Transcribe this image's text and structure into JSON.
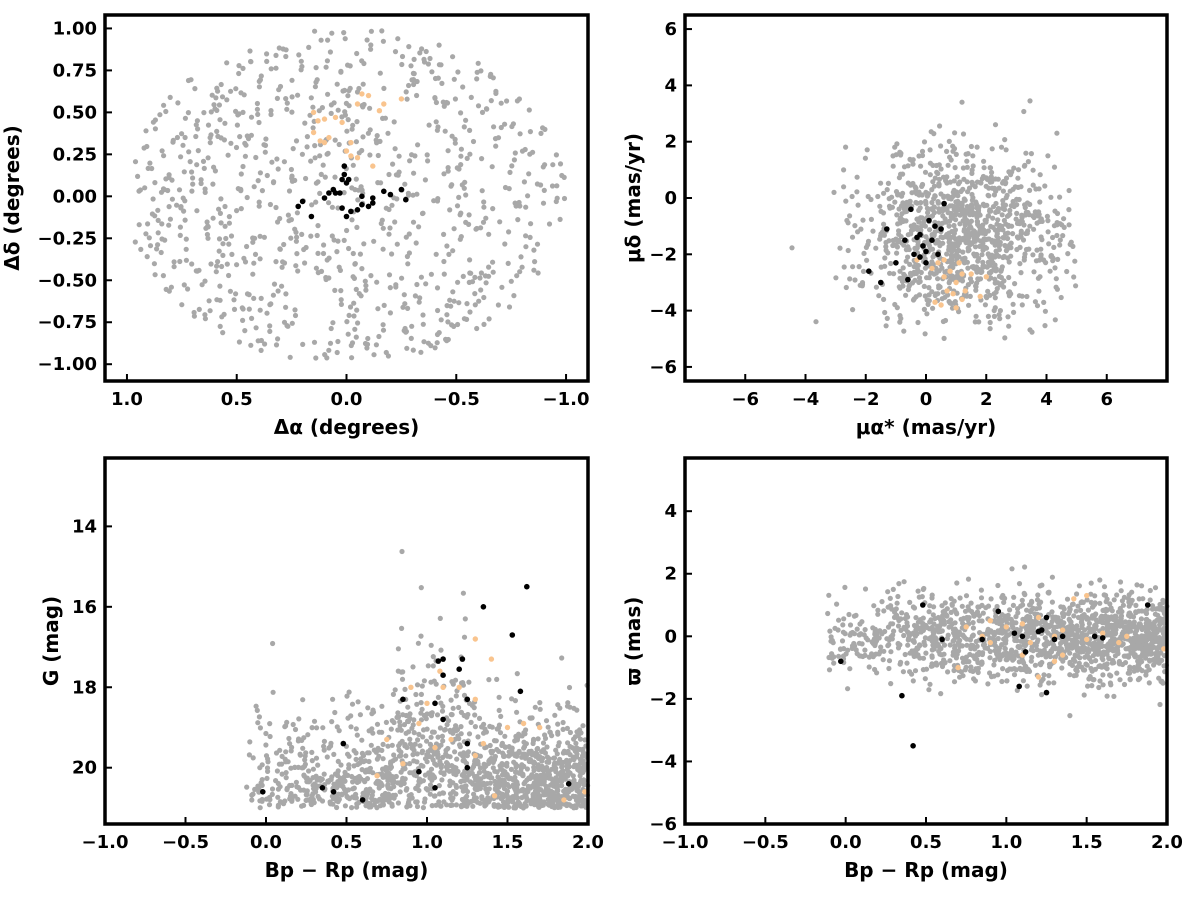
{
  "colors": {
    "field": "#a8a8a8",
    "orange": "#f9c48e",
    "black": "#000000",
    "frame": "#000000"
  },
  "chart_data": [
    {
      "type": "scatter",
      "id": "positions",
      "xlabel": "Δα (degrees)",
      "ylabel": "Δδ (degrees)",
      "xlim": [
        1.1,
        -1.1
      ],
      "ylim": [
        -1.1,
        1.08
      ],
      "xticks": [
        {
          "v": 1.0,
          "label": "1.0"
        },
        {
          "v": 0.5,
          "label": "0.5"
        },
        {
          "v": 0.0,
          "label": "0.0"
        },
        {
          "v": -0.5,
          "label": "−0.5"
        },
        {
          "v": -1.0,
          "label": "−1.0"
        }
      ],
      "yticks": [
        {
          "v": 1.0,
          "label": "1.00"
        },
        {
          "v": 0.75,
          "label": "0.75"
        },
        {
          "v": 0.5,
          "label": "0.50"
        },
        {
          "v": 0.25,
          "label": "0.25"
        },
        {
          "v": 0.0,
          "label": "0.00"
        },
        {
          "v": -0.25,
          "label": "−0.25"
        },
        {
          "v": -0.5,
          "label": "−0.50"
        },
        {
          "v": -0.75,
          "label": "−0.75"
        },
        {
          "v": -1.0,
          "label": "−1.00"
        }
      ],
      "grid": false,
      "field_sample": {
        "n": 900,
        "shape": "disk",
        "center": [
          0.0,
          0.0
        ],
        "radius": 1.0
      },
      "orange": [
        [
          0.15,
          0.5
        ],
        [
          0.13,
          0.45
        ],
        [
          0.1,
          0.46
        ],
        [
          0.15,
          0.38
        ],
        [
          0.12,
          0.33
        ],
        [
          0.08,
          0.35
        ],
        [
          0.05,
          0.47
        ],
        [
          0.02,
          0.44
        ],
        [
          0.0,
          0.27
        ],
        [
          -0.02,
          0.24
        ],
        [
          -0.05,
          0.23
        ],
        [
          -0.05,
          0.55
        ],
        [
          -0.07,
          0.61
        ],
        [
          -0.1,
          0.6
        ],
        [
          -0.15,
          0.51
        ],
        [
          -0.17,
          0.55
        ],
        [
          -0.25,
          0.58
        ],
        [
          -0.12,
          0.18
        ],
        [
          0.1,
          0.32
        ],
        [
          -0.02,
          0.32
        ]
      ],
      "black": [
        [
          0.22,
          -0.06
        ],
        [
          0.2,
          -0.03
        ],
        [
          0.16,
          -0.12
        ],
        [
          0.1,
          -0.01
        ],
        [
          0.08,
          0.02
        ],
        [
          0.06,
          0.04
        ],
        [
          0.05,
          0.02
        ],
        [
          0.03,
          0.02
        ],
        [
          0.02,
          0.1
        ],
        [
          0.01,
          0.13
        ],
        [
          0.01,
          0.18
        ],
        [
          0.0,
          0.08
        ],
        [
          -0.01,
          0.1
        ],
        [
          -0.02,
          -0.09
        ],
        [
          -0.05,
          -0.08
        ],
        [
          0.0,
          -0.12
        ],
        [
          -0.07,
          0.0
        ],
        [
          -0.07,
          -0.05
        ],
        [
          -0.1,
          -0.06
        ],
        [
          -0.12,
          -0.04
        ],
        [
          -0.12,
          -0.01
        ],
        [
          -0.17,
          0.03
        ],
        [
          -0.2,
          0.01
        ],
        [
          -0.25,
          0.04
        ],
        [
          -0.27,
          -0.02
        ],
        [
          0.02,
          -0.07
        ]
      ]
    },
    {
      "type": "scatter",
      "id": "proper-motion",
      "xlabel": "μα* (mas/yr)",
      "ylabel": "μδ (mas/yr)",
      "xlim": [
        -8.0,
        8.0
      ],
      "ylim": [
        -6.5,
        6.5
      ],
      "xticks": [
        {
          "v": -6,
          "label": "−6"
        },
        {
          "v": -4,
          "label": "−4"
        },
        {
          "v": -2,
          "label": "−2"
        },
        {
          "v": 0,
          "label": "0"
        },
        {
          "v": 2,
          "label": "2"
        },
        {
          "v": 4,
          "label": "4"
        },
        {
          "v": 6,
          "label": "6"
        }
      ],
      "yticks": [
        {
          "v": 6,
          "label": "6"
        },
        {
          "v": 4,
          "label": "4"
        },
        {
          "v": 2,
          "label": "2"
        },
        {
          "v": 0,
          "label": "0"
        },
        {
          "v": -2,
          "label": "−2"
        },
        {
          "v": -4,
          "label": "−4"
        },
        {
          "v": -6,
          "label": "−6"
        }
      ],
      "grid": false,
      "field_sample": {
        "n": 1100,
        "shape": "blob",
        "center": [
          1.2,
          -1.4
        ],
        "spread": [
          1.7,
          1.5
        ]
      },
      "orange": [
        [
          0.2,
          -2.5
        ],
        [
          0.4,
          -2.3
        ],
        [
          0.6,
          -2.8
        ],
        [
          0.8,
          -2.6
        ],
        [
          1.0,
          -3.0
        ],
        [
          1.2,
          -2.7
        ],
        [
          0.9,
          -3.4
        ],
        [
          1.3,
          -3.3
        ],
        [
          1.5,
          -2.7
        ],
        [
          0.3,
          -3.7
        ],
        [
          0.5,
          -3.8
        ],
        [
          1.0,
          -3.9
        ],
        [
          1.2,
          -3.6
        ],
        [
          0.7,
          -3.3
        ],
        [
          2.0,
          -2.8
        ],
        [
          0.4,
          -2.0
        ],
        [
          -0.3,
          -2.2
        ],
        [
          1.8,
          -3.5
        ],
        [
          1.1,
          -2.3
        ],
        [
          0.6,
          -2.2
        ]
      ],
      "black": [
        [
          -1.3,
          -1.1
        ],
        [
          -1.9,
          -2.6
        ],
        [
          -1.5,
          -3.0
        ],
        [
          -1.0,
          -2.3
        ],
        [
          -0.7,
          -1.5
        ],
        [
          -0.5,
          -0.4
        ],
        [
          -0.4,
          -2.0
        ],
        [
          -0.6,
          -2.9
        ],
        [
          -0.2,
          -1.3
        ],
        [
          -0.1,
          -1.7
        ],
        [
          0.0,
          -1.9
        ],
        [
          0.0,
          -2.3
        ],
        [
          0.1,
          -0.8
        ],
        [
          0.2,
          -1.5
        ],
        [
          0.3,
          -1.0
        ],
        [
          0.5,
          -1.1
        ],
        [
          0.4,
          -2.0
        ],
        [
          0.6,
          -0.2
        ],
        [
          -0.2,
          -2.1
        ],
        [
          -0.3,
          -1.4
        ]
      ]
    },
    {
      "type": "scatter",
      "id": "cmd",
      "xlabel": "Bp − Rp (mag)",
      "ylabel": "G (mag)",
      "xlim": [
        -1.0,
        2.0
      ],
      "ylim": [
        12.3,
        21.4
      ],
      "y_inverted": true,
      "xticks": [
        {
          "v": -1.0,
          "label": "−1.0"
        },
        {
          "v": -0.5,
          "label": "−0.5"
        },
        {
          "v": 0.0,
          "label": "0.0"
        },
        {
          "v": 0.5,
          "label": "0.5"
        },
        {
          "v": 1.0,
          "label": "1.0"
        },
        {
          "v": 1.5,
          "label": "1.5"
        },
        {
          "v": 2.0,
          "label": "2.0"
        }
      ],
      "yticks": [
        {
          "v": 20,
          "label": "20"
        },
        {
          "v": 18,
          "label": "18"
        },
        {
          "v": 16,
          "label": "16"
        },
        {
          "v": 14,
          "label": "14"
        }
      ],
      "grid": false,
      "field_sample": {
        "n": 1500,
        "shape": "cmd",
        "x_range": [
          -0.15,
          2.0
        ],
        "y_range": [
          14.3,
          21.0
        ]
      },
      "orange": [
        [
          0.69,
          20.2
        ],
        [
          0.85,
          19.9
        ],
        [
          1.05,
          19.5
        ],
        [
          1.15,
          19.3
        ],
        [
          1.3,
          19.7
        ],
        [
          1.35,
          19.4
        ],
        [
          1.42,
          20.7
        ],
        [
          1.5,
          19.0
        ],
        [
          1.6,
          18.9
        ],
        [
          0.95,
          18.9
        ],
        [
          1.0,
          18.4
        ],
        [
          1.1,
          18.0
        ],
        [
          1.2,
          18.0
        ],
        [
          1.3,
          18.3
        ],
        [
          0.9,
          18.0
        ],
        [
          1.4,
          17.3
        ],
        [
          1.3,
          16.8
        ],
        [
          1.08,
          17.6
        ],
        [
          1.85,
          20.8
        ],
        [
          1.98,
          20.6
        ],
        [
          1.7,
          19.0
        ],
        [
          0.75,
          19.3
        ]
      ],
      "black": [
        [
          -0.02,
          20.6
        ],
        [
          0.35,
          20.5
        ],
        [
          0.42,
          20.6
        ],
        [
          0.48,
          19.4
        ],
        [
          0.6,
          20.8
        ],
        [
          0.95,
          20.1
        ],
        [
          1.05,
          20.5
        ],
        [
          1.25,
          20.0
        ],
        [
          1.25,
          19.4
        ],
        [
          1.1,
          18.8
        ],
        [
          1.05,
          18.4
        ],
        [
          1.25,
          18.3
        ],
        [
          1.58,
          18.1
        ],
        [
          1.1,
          17.7
        ],
        [
          1.2,
          17.55
        ],
        [
          1.22,
          17.3
        ],
        [
          1.07,
          17.35
        ],
        [
          1.1,
          17.3
        ],
        [
          1.53,
          16.7
        ],
        [
          1.35,
          16.0
        ],
        [
          1.62,
          15.5
        ],
        [
          1.88,
          20.4
        ],
        [
          0.85,
          18.3
        ]
      ]
    },
    {
      "type": "scatter",
      "id": "parallax",
      "xlabel": "Bp − Rp (mag)",
      "ylabel": "ϖ (mas)",
      "xlim": [
        -1.0,
        2.0
      ],
      "ylim": [
        -6.0,
        5.7
      ],
      "xticks": [
        {
          "v": -1.0,
          "label": "−1.0"
        },
        {
          "v": -0.5,
          "label": "−0.5"
        },
        {
          "v": 0.0,
          "label": "0.0"
        },
        {
          "v": 0.5,
          "label": "0.5"
        },
        {
          "v": 1.0,
          "label": "1.0"
        },
        {
          "v": 1.5,
          "label": "1.5"
        },
        {
          "v": 2.0,
          "label": "2.0"
        }
      ],
      "yticks": [
        {
          "v": 4,
          "label": "4"
        },
        {
          "v": 2,
          "label": "2"
        },
        {
          "v": 0,
          "label": "0"
        },
        {
          "v": -2,
          "label": "−2"
        },
        {
          "v": -4,
          "label": "−4"
        },
        {
          "v": -6,
          "label": "−6"
        }
      ],
      "grid": false,
      "field_sample": {
        "n": 1500,
        "shape": "band",
        "x_range": [
          -0.15,
          2.0
        ],
        "center_y": 0.0,
        "spread_y": 0.7
      },
      "orange": [
        [
          0.75,
          0.3
        ],
        [
          0.9,
          0.5
        ],
        [
          0.9,
          -0.2
        ],
        [
          1.0,
          0.3
        ],
        [
          1.1,
          0.4
        ],
        [
          1.15,
          -0.2
        ],
        [
          1.2,
          0.6
        ],
        [
          1.3,
          0.0
        ],
        [
          1.35,
          0.2
        ],
        [
          1.42,
          1.2
        ],
        [
          1.5,
          1.3
        ],
        [
          1.35,
          -0.6
        ],
        [
          1.3,
          -0.8
        ],
        [
          1.7,
          -0.2
        ],
        [
          1.75,
          0.0
        ],
        [
          1.98,
          -0.4
        ],
        [
          0.7,
          -1.0
        ],
        [
          1.2,
          -1.3
        ],
        [
          1.1,
          -0.6
        ],
        [
          0.85,
          0.0
        ],
        [
          1.5,
          -0.1
        ],
        [
          1.6,
          0.1
        ]
      ],
      "black": [
        [
          -0.03,
          -0.8
        ],
        [
          0.35,
          -1.9
        ],
        [
          0.42,
          -3.5
        ],
        [
          0.48,
          1.0
        ],
        [
          0.6,
          -0.1
        ],
        [
          0.85,
          -0.1
        ],
        [
          0.95,
          0.8
        ],
        [
          1.05,
          0.1
        ],
        [
          1.08,
          -1.6
        ],
        [
          1.1,
          0.0
        ],
        [
          1.12,
          -0.5
        ],
        [
          1.22,
          0.2
        ],
        [
          1.25,
          0.6
        ],
        [
          1.25,
          -1.8
        ],
        [
          1.3,
          -0.1
        ],
        [
          1.35,
          0.0
        ],
        [
          1.55,
          0.0
        ],
        [
          1.6,
          -0.05
        ],
        [
          1.88,
          1.0
        ],
        [
          1.2,
          0.15
        ]
      ]
    }
  ]
}
